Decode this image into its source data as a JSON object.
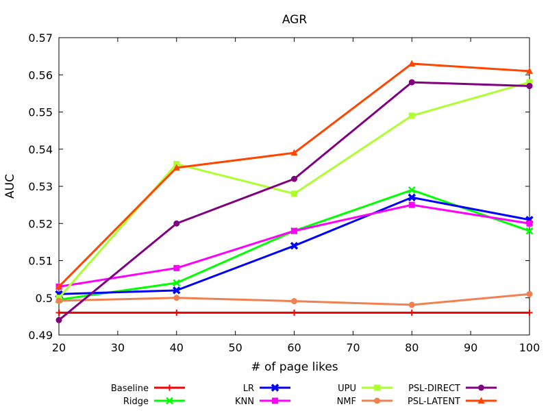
{
  "chart_data": {
    "type": "line",
    "title": "AGR",
    "xlabel": "# of page likes",
    "ylabel": "AUC",
    "x": [
      20,
      40,
      60,
      80,
      100
    ],
    "xlim": [
      20,
      100
    ],
    "ylim": [
      0.49,
      0.57
    ],
    "xticks": [
      20,
      30,
      40,
      50,
      60,
      70,
      80,
      90,
      100
    ],
    "xtick_labels": [
      "20",
      "30",
      "40",
      "50",
      "60",
      "70",
      "80",
      "90",
      "100"
    ],
    "yticks": [
      0.49,
      0.5,
      0.51,
      0.52,
      0.53,
      0.54,
      0.55,
      0.56,
      0.57
    ],
    "ytick_labels": [
      "0.49",
      "0.5",
      "0.51",
      "0.52",
      "0.53",
      "0.54",
      "0.55",
      "0.56",
      "0.57"
    ],
    "grid": false,
    "legend_position": "bottom",
    "series": [
      {
        "name": "Baseline",
        "color": "#ff0000",
        "marker": "plus",
        "values": [
          0.496,
          0.496,
          0.496,
          0.496,
          0.496
        ]
      },
      {
        "name": "Ridge",
        "color": "#00ff00",
        "marker": "x",
        "values": [
          0.4995,
          0.504,
          0.518,
          0.529,
          0.518
        ]
      },
      {
        "name": "LR",
        "color": "#0000ff",
        "marker": "filled-x",
        "values": [
          0.501,
          0.502,
          0.514,
          0.527,
          0.521
        ]
      },
      {
        "name": "KNN",
        "color": "#ff00ff",
        "marker": "square",
        "values": [
          0.503,
          0.508,
          0.518,
          0.525,
          0.52
        ]
      },
      {
        "name": "UPU",
        "color": "#adff2f",
        "marker": "square",
        "values": [
          0.5,
          0.536,
          0.528,
          0.549,
          0.558
        ]
      },
      {
        "name": "NMF",
        "color": "#f08050",
        "marker": "circle",
        "values": [
          0.4992,
          0.5,
          0.4991,
          0.4981,
          0.501
        ]
      },
      {
        "name": "PSL-DIRECT",
        "color": "#800080",
        "marker": "circle",
        "values": [
          0.494,
          0.52,
          0.532,
          0.558,
          0.557
        ]
      },
      {
        "name": "PSL-LATENT",
        "color": "#ff4500",
        "marker": "triangle",
        "values": [
          0.503,
          0.535,
          0.539,
          0.563,
          0.561
        ]
      }
    ]
  }
}
